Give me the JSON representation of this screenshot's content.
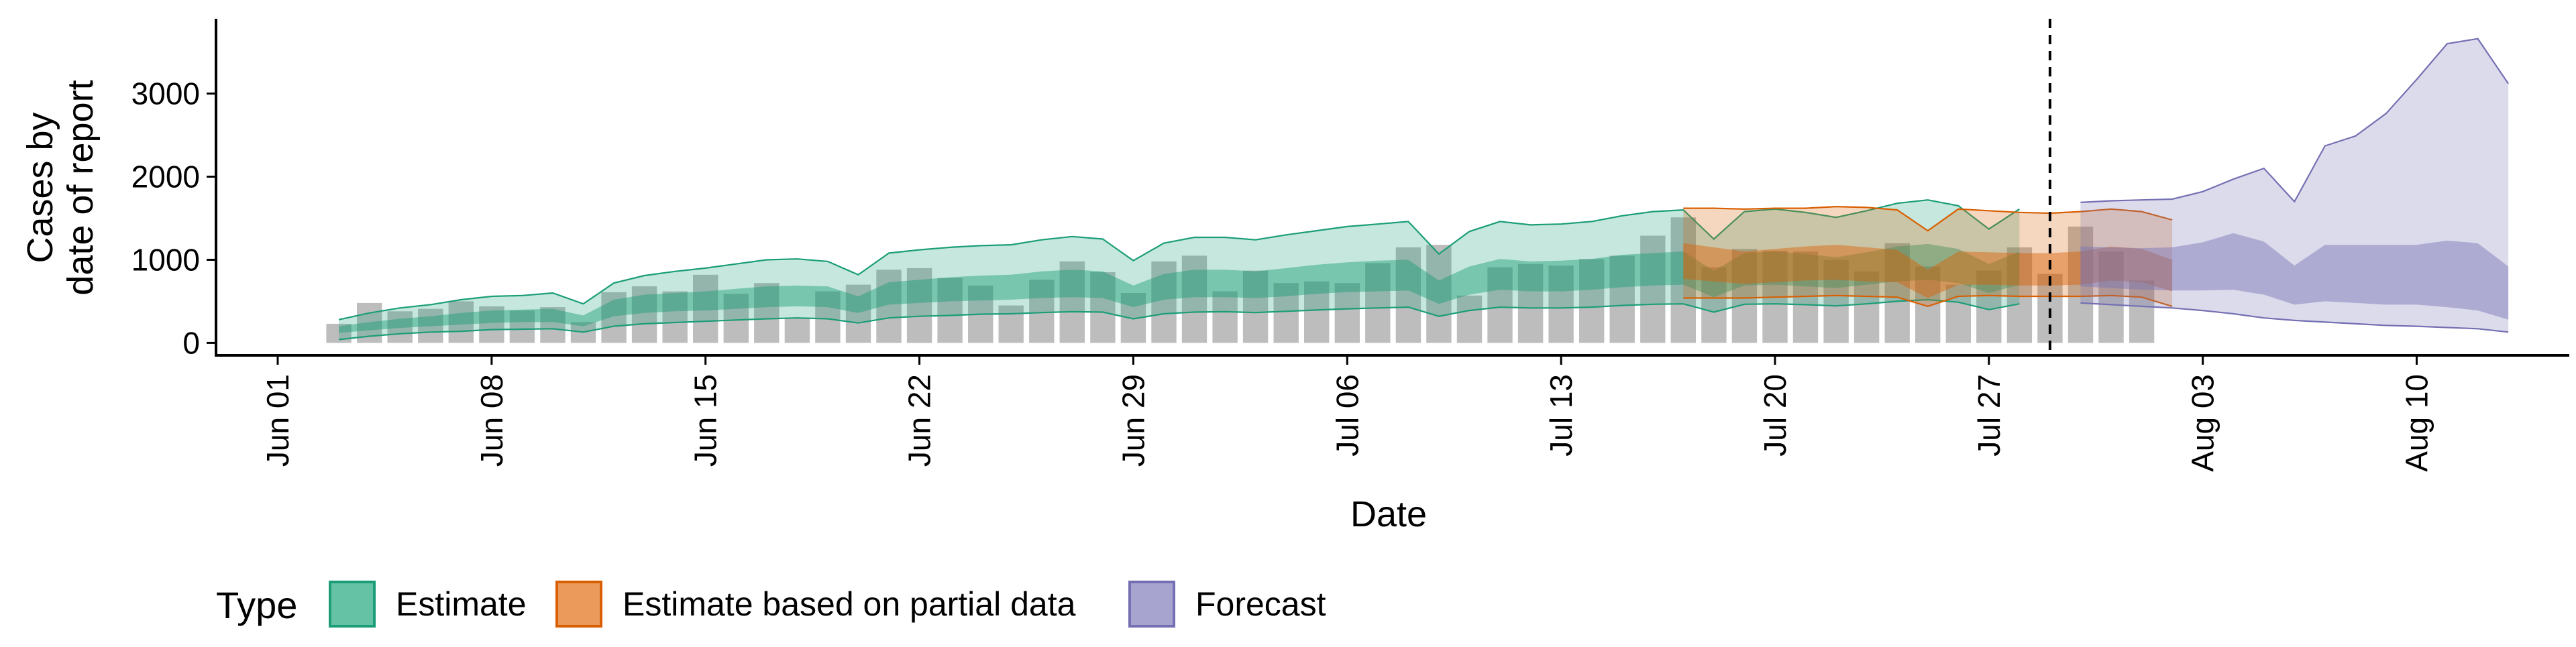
{
  "chart_data": {
    "type": "area",
    "xlabel": "Date",
    "ylabel": [
      "Cases by",
      "date of report"
    ],
    "ylim": [
      -150,
      3900
    ],
    "grid": false,
    "x_ticks": [
      "Jun 01",
      "Jun 08",
      "Jun 15",
      "Jun 22",
      "Jun 29",
      "Jul 06",
      "Jul 13",
      "Jul 20",
      "Jul 27",
      "Aug 03",
      "Aug 10"
    ],
    "y_ticks": [
      0,
      1000,
      2000,
      3000
    ],
    "y_tick_labels": [
      "0",
      "1000",
      "2000",
      "3000"
    ],
    "vertical_line_date": "2020-07-29",
    "legend": {
      "title": "Type",
      "position": "bottom",
      "items": [
        {
          "label": "Estimate",
          "fill": "#66c2a5",
          "stroke": "#1b9e77"
        },
        {
          "label": "Estimate based on partial data",
          "fill": "#eb9a5c",
          "stroke": "#d95f02"
        },
        {
          "label": "Forecast",
          "fill": "#a8a4d0",
          "stroke": "#7570b3"
        }
      ]
    },
    "bars": {
      "start": "2020-06-03",
      "color": "#bdbdbd",
      "values": [
        230,
        480,
        380,
        410,
        500,
        440,
        390,
        430,
        250,
        610,
        680,
        620,
        820,
        590,
        720,
        300,
        620,
        700,
        880,
        900,
        780,
        690,
        450,
        760,
        980,
        850,
        600,
        980,
        1050,
        620,
        870,
        720,
        740,
        720,
        960,
        1150,
        1180,
        570,
        910,
        950,
        930,
        1010,
        1050,
        1290,
        1510,
        910,
        1130,
        1110,
        1100,
        1000,
        860,
        1200,
        920,
        700,
        870,
        1150,
        830,
        1400,
        1100,
        750
      ]
    },
    "series": [
      {
        "name": "Estimate",
        "start": "2020-06-03",
        "color": "#1b9e77",
        "outer_upper": [
          280,
          360,
          420,
          460,
          520,
          560,
          570,
          600,
          470,
          720,
          810,
          860,
          900,
          950,
          1000,
          1010,
          980,
          820,
          1080,
          1120,
          1150,
          1170,
          1180,
          1240,
          1280,
          1250,
          990,
          1200,
          1270,
          1270,
          1240,
          1300,
          1350,
          1400,
          1430,
          1460,
          1070,
          1340,
          1460,
          1420,
          1430,
          1460,
          1530,
          1580,
          1600,
          1250,
          1580,
          1610,
          1570,
          1510,
          1590,
          1680,
          1720,
          1650,
          1370,
          1610
        ],
        "inner_upper": [
          200,
          250,
          290,
          320,
          360,
          390,
          400,
          410,
          330,
          520,
          580,
          600,
          620,
          650,
          680,
          690,
          680,
          560,
          730,
          760,
          790,
          810,
          820,
          860,
          880,
          860,
          690,
          830,
          880,
          880,
          860,
          900,
          940,
          970,
          990,
          1000,
          750,
          920,
          1010,
          980,
          990,
          1010,
          1060,
          1080,
          1100,
          870,
          1080,
          1100,
          1070,
          1030,
          1090,
          1160,
          1190,
          1130,
          950,
          1100
        ],
        "inner_lower": [
          120,
          150,
          180,
          200,
          220,
          240,
          250,
          250,
          200,
          320,
          360,
          380,
          390,
          410,
          430,
          440,
          430,
          360,
          460,
          480,
          500,
          510,
          520,
          540,
          550,
          540,
          430,
          520,
          550,
          550,
          540,
          560,
          590,
          610,
          620,
          630,
          470,
          580,
          640,
          620,
          620,
          640,
          670,
          690,
          700,
          550,
          690,
          700,
          680,
          660,
          700,
          740,
          760,
          720,
          600,
          700
        ],
        "outer_lower": [
          40,
          80,
          110,
          130,
          140,
          160,
          165,
          170,
          130,
          200,
          230,
          245,
          260,
          275,
          290,
          300,
          290,
          240,
          300,
          320,
          330,
          345,
          350,
          365,
          375,
          370,
          290,
          350,
          370,
          375,
          365,
          380,
          395,
          410,
          420,
          430,
          320,
          390,
          430,
          420,
          420,
          430,
          450,
          465,
          470,
          370,
          465,
          470,
          460,
          445,
          470,
          500,
          520,
          490,
          400,
          470
        ]
      },
      {
        "name": "Estimate based on partial data",
        "start": "2020-07-17",
        "color": "#d95f02",
        "outer_upper": [
          1620,
          1620,
          1610,
          1620,
          1620,
          1640,
          1630,
          1600,
          1350,
          1610,
          1590,
          1570,
          1560,
          1580,
          1610,
          1580,
          1480
        ],
        "inner_upper": [
          1200,
          1150,
          1100,
          1130,
          1160,
          1180,
          1150,
          1120,
          880,
          1100,
          1090,
          1080,
          1080,
          1100,
          1160,
          1130,
          1000
        ],
        "inner_lower": [
          770,
          740,
          710,
          730,
          750,
          760,
          740,
          730,
          540,
          700,
          700,
          690,
          690,
          700,
          750,
          730,
          620
        ],
        "outer_lower": [
          540,
          540,
          540,
          550,
          560,
          570,
          560,
          550,
          440,
          560,
          570,
          560,
          560,
          560,
          570,
          550,
          440
        ]
      },
      {
        "name": "Forecast",
        "start": "2020-07-30",
        "color": "#7570b3",
        "outer_upper": [
          1690,
          1710,
          1720,
          1730,
          1820,
          1970,
          2100,
          1700,
          2370,
          2490,
          2760,
          3170,
          3600,
          3660,
          3120
        ],
        "inner_upper": [
          1160,
          1150,
          1140,
          1150,
          1210,
          1320,
          1220,
          930,
          1180,
          1180,
          1180,
          1180,
          1230,
          1200,
          920
        ],
        "inner_lower": [
          680,
          660,
          640,
          630,
          630,
          640,
          580,
          460,
          500,
          480,
          460,
          460,
          430,
          390,
          280
        ],
        "outer_lower": [
          480,
          460,
          440,
          420,
          390,
          350,
          300,
          270,
          250,
          230,
          210,
          200,
          185,
          170,
          130
        ]
      }
    ]
  }
}
